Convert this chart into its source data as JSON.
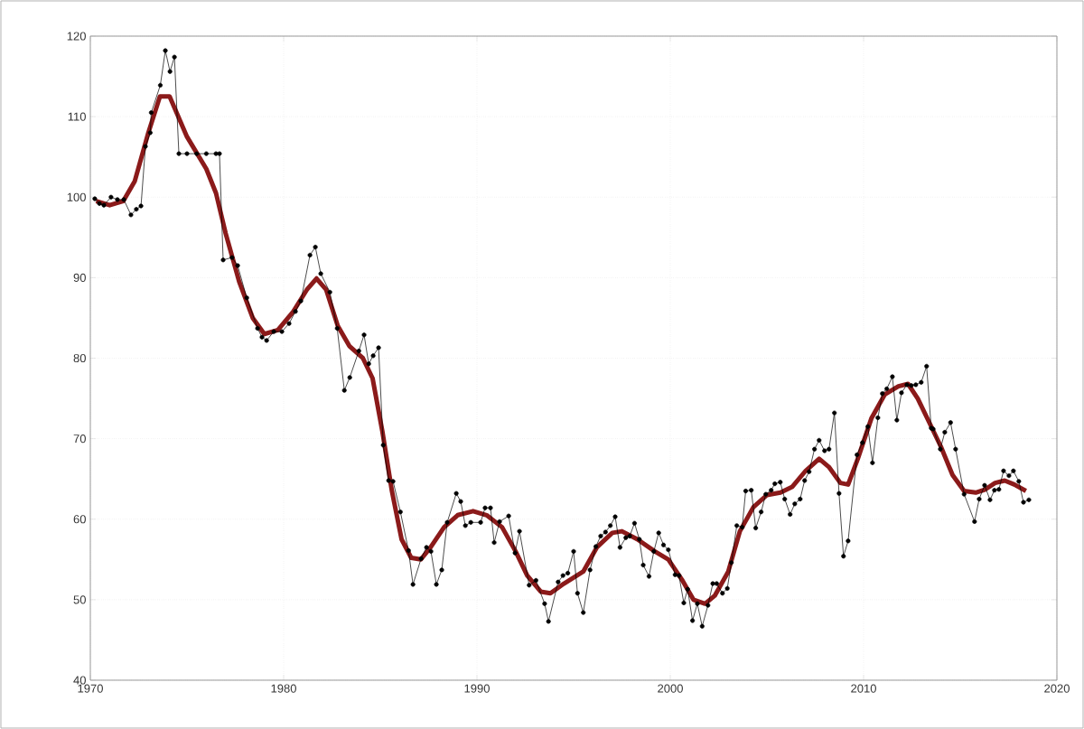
{
  "chart_data": {
    "type": "line",
    "xlim": [
      1970,
      2020
    ],
    "ylim": [
      40,
      120
    ],
    "xticks": [
      1970,
      1980,
      1990,
      2000,
      2010,
      2020
    ],
    "yticks": [
      40,
      50,
      60,
      70,
      80,
      90,
      100,
      110,
      120
    ],
    "grid": true,
    "series": [
      {
        "color": "#000000",
        "marker": "circle",
        "x": [
          1970.23,
          1970.47,
          1970.7,
          1971.07,
          1971.4,
          1971.73,
          1972.1,
          1972.38,
          1972.62,
          1972.85,
          1973.1,
          1973.15,
          1973.62,
          1973.88,
          1974.12,
          1974.35,
          1974.58,
          1975.0,
          1975.5,
          1976.0,
          1976.5,
          1976.68,
          1976.87,
          1977.33,
          1977.62,
          1978.09,
          1978.65,
          1978.88,
          1979.12,
          1979.49,
          1979.91,
          1980.28,
          1980.61,
          1980.89,
          1981.36,
          1981.64,
          1981.92,
          1982.39,
          1982.77,
          1983.14,
          1983.42,
          1983.89,
          1984.16,
          1984.4,
          1984.63,
          1984.91,
          1985.15,
          1985.43,
          1985.66,
          1986.04,
          1986.46,
          1986.69,
          1987.11,
          1987.39,
          1987.62,
          1987.9,
          1988.18,
          1988.46,
          1988.93,
          1989.16,
          1989.4,
          1989.68,
          1990.19,
          1990.42,
          1990.7,
          1990.89,
          1991.17,
          1991.64,
          1991.97,
          1992.2,
          1992.7,
          1993.05,
          1993.5,
          1993.7,
          1994.2,
          1994.45,
          1994.7,
          1995.0,
          1995.2,
          1995.5,
          1995.85,
          1996.15,
          1996.4,
          1996.65,
          1996.9,
          1997.15,
          1997.4,
          1997.7,
          1997.9,
          1998.15,
          1998.4,
          1998.6,
          1998.9,
          1999.15,
          1999.4,
          1999.65,
          1999.9,
          2000.25,
          2000.45,
          2000.7,
          2000.9,
          2001.15,
          2001.4,
          2001.65,
          2001.95,
          2002.2,
          2002.4,
          2002.7,
          2002.95,
          2003.16,
          2003.44,
          2003.72,
          2003.9,
          2004.19,
          2004.42,
          2004.7,
          2004.94,
          2005.22,
          2005.41,
          2005.69,
          2005.92,
          2006.2,
          2006.44,
          2006.72,
          2006.95,
          2007.18,
          2007.46,
          2007.7,
          2007.98,
          2008.21,
          2008.49,
          2008.73,
          2008.96,
          2009.2,
          2009.66,
          2009.94,
          2010.22,
          2010.46,
          2010.74,
          2010.97,
          2011.2,
          2011.49,
          2011.72,
          2011.96,
          2012.24,
          2012.47,
          2012.7,
          2012.98,
          2013.26,
          2013.5,
          2013.6,
          2013.97,
          2014.2,
          2014.5,
          2014.76,
          2015.2,
          2015.74,
          2015.98,
          2016.26,
          2016.54,
          2016.77,
          2017.0,
          2017.24,
          2017.52,
          2017.75,
          2018.03,
          2018.27,
          2018.55
        ],
        "values": [
          99.8,
          99.2,
          99.0,
          100.0,
          99.7,
          99.7,
          97.8,
          98.5,
          98.9,
          106.3,
          108.0,
          110.5,
          113.9,
          118.2,
          115.6,
          117.4,
          105.4,
          105.4,
          105.4,
          105.4,
          105.4,
          105.4,
          92.2,
          92.5,
          91.5,
          87.5,
          83.7,
          82.6,
          82.2,
          83.3,
          83.3,
          84.3,
          85.8,
          87.1,
          92.8,
          93.8,
          90.5,
          88.2,
          83.7,
          76.0,
          77.6,
          80.9,
          82.9,
          79.3,
          80.3,
          81.3,
          69.2,
          64.8,
          64.7,
          60.9,
          56.1,
          51.9,
          55.1,
          56.5,
          56.0,
          51.9,
          53.7,
          59.6,
          63.2,
          62.2,
          59.2,
          59.6,
          59.6,
          61.4,
          61.4,
          57.1,
          59.7,
          60.4,
          55.8,
          58.5,
          51.8,
          52.4,
          49.5,
          47.3,
          52.2,
          53.0,
          53.3,
          56.0,
          50.8,
          48.4,
          53.7,
          56.6,
          57.9,
          58.4,
          59.2,
          60.3,
          56.5,
          57.7,
          57.9,
          59.5,
          57.5,
          54.3,
          52.9,
          56.0,
          58.3,
          56.8,
          56.2,
          53.1,
          53.0,
          49.6,
          51.3,
          47.4,
          49.5,
          46.7,
          49.3,
          52.0,
          52.0,
          50.8,
          51.4,
          54.6,
          59.2,
          59.0,
          63.5,
          63.6,
          58.9,
          60.9,
          63.1,
          63.6,
          64.4,
          64.6,
          62.5,
          60.6,
          61.9,
          62.5,
          64.8,
          65.9,
          68.7,
          69.8,
          68.5,
          68.7,
          73.2,
          63.2,
          55.4,
          57.3,
          68.0,
          69.5,
          71.5,
          67.0,
          72.6,
          75.6,
          76.2,
          77.7,
          72.3,
          75.7,
          76.7,
          76.6,
          76.7,
          77.0,
          79.0,
          71.3,
          71.2,
          68.7,
          70.8,
          72.0,
          68.7,
          63.1,
          59.7,
          62.5,
          64.2,
          62.4,
          63.6,
          63.7,
          66.0,
          65.4,
          66.0,
          64.7,
          62.1,
          62.4
        ]
      },
      {
        "color": "#8b1a1a",
        "marker": "none",
        "x": [
          1970.3,
          1971.0,
          1971.7,
          1972.3,
          1973.0,
          1973.6,
          1974.1,
          1975.0,
          1976.0,
          1976.5,
          1977.0,
          1977.7,
          1978.4,
          1979.0,
          1979.7,
          1980.5,
          1981.2,
          1981.7,
          1982.2,
          1982.8,
          1983.4,
          1984.1,
          1984.6,
          1985.1,
          1985.6,
          1986.1,
          1986.6,
          1987.1,
          1987.6,
          1988.3,
          1989.0,
          1989.8,
          1990.5,
          1991.3,
          1992.0,
          1992.6,
          1993.3,
          1993.8,
          1994.5,
          1995.5,
          1996.2,
          1997.0,
          1997.5,
          1998.3,
          1999.2,
          1999.9,
          2000.6,
          2001.2,
          2001.8,
          2002.3,
          2003.0,
          2003.6,
          2004.3,
          2005.0,
          2005.7,
          2006.3,
          2007.0,
          2007.7,
          2008.2,
          2008.8,
          2009.2,
          2009.7,
          2010.4,
          2011.1,
          2011.8,
          2012.3,
          2012.8,
          2013.4,
          2014.0,
          2014.6,
          2015.2,
          2015.8,
          2016.3,
          2016.8,
          2017.3,
          2017.8,
          2018.4
        ],
        "values": [
          99.5,
          99.0,
          99.5,
          102.0,
          108.0,
          112.5,
          112.5,
          107.5,
          103.5,
          100.5,
          95.5,
          89.5,
          85.0,
          83.0,
          83.5,
          85.8,
          88.5,
          89.9,
          88.5,
          84.0,
          81.5,
          80.0,
          77.5,
          71.0,
          63.5,
          57.5,
          55.2,
          55.0,
          56.5,
          59.0,
          60.5,
          61.0,
          60.5,
          59.0,
          56.0,
          53.0,
          51.0,
          50.8,
          52.0,
          53.5,
          56.5,
          58.3,
          58.5,
          57.5,
          56.0,
          55.0,
          52.5,
          50.0,
          49.5,
          50.5,
          53.5,
          58.5,
          61.5,
          63.0,
          63.3,
          64.0,
          66.0,
          67.5,
          66.5,
          64.5,
          64.3,
          67.5,
          72.5,
          75.5,
          76.5,
          76.8,
          75.0,
          72.0,
          69.0,
          65.5,
          63.5,
          63.3,
          63.7,
          64.5,
          64.8,
          64.3,
          63.5
        ]
      }
    ]
  }
}
